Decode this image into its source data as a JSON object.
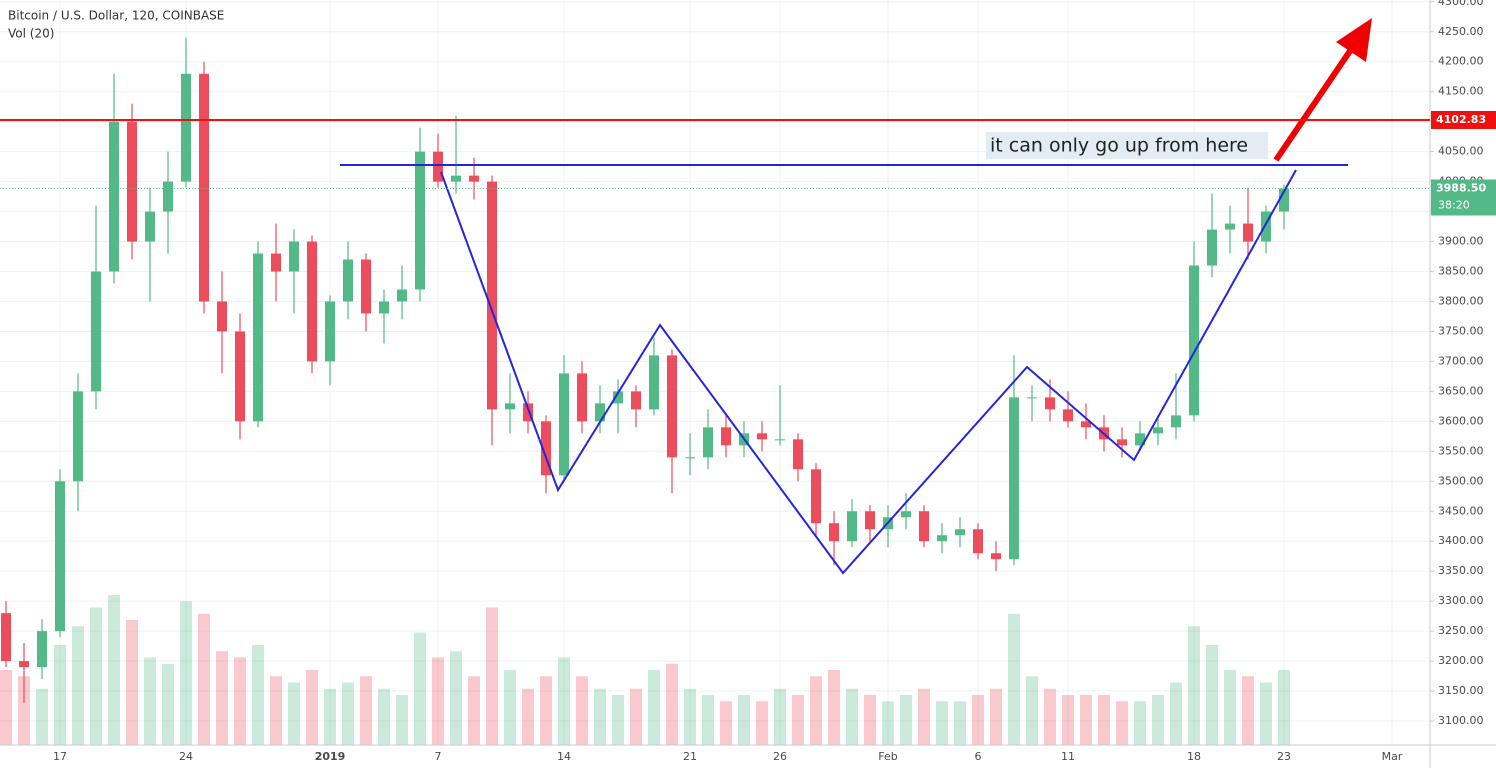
{
  "chart_data": {
    "type": "candlestick",
    "title": "Bitcoin / U.S. Dollar, 120, COINBASE",
    "indicator": "Vol (20)",
    "categories": [
      null,
      null,
      null,
      "17",
      null,
      null,
      null,
      null,
      null,
      null,
      "24",
      null,
      null,
      null,
      null,
      null,
      null,
      null,
      "2019",
      null,
      null,
      null,
      null,
      null,
      "7",
      null,
      null,
      null,
      null,
      null,
      null,
      "14",
      null,
      null,
      null,
      null,
      null,
      null,
      "21",
      null,
      null,
      null,
      null,
      "26",
      null,
      null,
      null,
      null,
      null,
      "Feb",
      null,
      null,
      null,
      null,
      "6",
      null,
      null,
      null,
      null,
      "11",
      null,
      null,
      null,
      null,
      null,
      null,
      "18",
      null,
      null,
      null,
      null,
      "23",
      null,
      null,
      null,
      null,
      null,
      "Mar",
      null,
      null
    ],
    "open": [
      3280,
      3200,
      3190,
      3250,
      3500,
      3650,
      3850,
      4100,
      3900,
      3950,
      4000,
      4180,
      3800,
      3750,
      3600,
      3880,
      3850,
      3900,
      3700,
      3800,
      3870,
      3780,
      3800,
      3820,
      4050,
      4000,
      4010,
      4000,
      3620,
      3630,
      3600,
      3510,
      3680,
      3600,
      3630,
      3650,
      3620,
      3710,
      3540,
      3540,
      3590,
      3560,
      3580,
      3570,
      3570,
      3520,
      3430,
      3400,
      3450,
      3420,
      3440,
      3450,
      3400,
      3410,
      3420,
      3380,
      3370,
      3640,
      3640,
      3620,
      3600,
      3590,
      3570,
      3560,
      3580,
      3590,
      3610,
      3860,
      3920,
      3930,
      3900,
      3950,
      null,
      null,
      null,
      null,
      null,
      null,
      null,
      null
    ],
    "high": [
      3300,
      3230,
      3270,
      3520,
      3680,
      3960,
      4180,
      4130,
      3990,
      4050,
      4240,
      4200,
      3850,
      3780,
      3900,
      3930,
      3920,
      3910,
      3810,
      3900,
      3880,
      3820,
      3860,
      4090,
      4080,
      4110,
      4040,
      4010,
      3680,
      3650,
      3610,
      3710,
      3700,
      3660,
      3670,
      3660,
      3740,
      3720,
      3580,
      3620,
      3610,
      3600,
      3600,
      3660,
      3580,
      3530,
      3450,
      3470,
      3460,
      3460,
      3480,
      3460,
      3430,
      3440,
      3430,
      3400,
      3710,
      3660,
      3670,
      3650,
      3630,
      3610,
      3590,
      3600,
      3610,
      3680,
      3900,
      3980,
      3960,
      3990,
      3960,
      3995,
      null,
      null,
      null,
      null,
      null,
      null,
      null,
      null
    ],
    "low": [
      3190,
      3130,
      3170,
      3240,
      3450,
      3620,
      3830,
      3870,
      3800,
      3880,
      3990,
      3780,
      3680,
      3570,
      3590,
      3800,
      3780,
      3680,
      3660,
      3770,
      3750,
      3730,
      3770,
      3800,
      3990,
      3980,
      3970,
      3560,
      3580,
      3580,
      3480,
      3500,
      3580,
      3580,
      3580,
      3590,
      3610,
      3480,
      3510,
      3520,
      3540,
      3540,
      3550,
      3560,
      3500,
      3410,
      3360,
      3390,
      3400,
      3390,
      3420,
      3390,
      3380,
      3390,
      3370,
      3350,
      3360,
      3600,
      3600,
      3590,
      3570,
      3550,
      3540,
      3550,
      3560,
      3570,
      3600,
      3840,
      3880,
      3870,
      3880,
      3920,
      null,
      null,
      null,
      null,
      null,
      null,
      null,
      null
    ],
    "close": [
      3200,
      3190,
      3250,
      3500,
      3650,
      3850,
      4100,
      3900,
      3950,
      4000,
      4180,
      3800,
      3750,
      3600,
      3880,
      3850,
      3900,
      3700,
      3800,
      3870,
      3780,
      3800,
      3820,
      4050,
      4000,
      4010,
      4000,
      3620,
      3630,
      3600,
      3510,
      3680,
      3600,
      3630,
      3650,
      3620,
      3710,
      3540,
      3540,
      3590,
      3560,
      3580,
      3570,
      3570,
      3520,
      3430,
      3400,
      3450,
      3420,
      3440,
      3450,
      3400,
      3410,
      3420,
      3380,
      3370,
      3640,
      3640,
      3620,
      3600,
      3590,
      3570,
      3560,
      3580,
      3590,
      3610,
      3860,
      3920,
      3930,
      3900,
      3950,
      3988.5,
      null,
      null,
      null,
      null,
      null,
      null,
      null,
      null
    ],
    "volume": [
      60,
      55,
      45,
      80,
      95,
      110,
      120,
      100,
      70,
      65,
      115,
      105,
      75,
      70,
      80,
      55,
      50,
      60,
      45,
      50,
      55,
      45,
      40,
      90,
      70,
      75,
      55,
      110,
      60,
      45,
      55,
      70,
      55,
      45,
      40,
      45,
      60,
      65,
      45,
      40,
      35,
      40,
      35,
      45,
      40,
      55,
      60,
      45,
      40,
      35,
      40,
      45,
      35,
      35,
      40,
      45,
      105,
      55,
      45,
      40,
      40,
      40,
      35,
      35,
      40,
      50,
      95,
      80,
      60,
      55,
      50,
      60,
      null,
      null,
      null,
      null,
      null,
      null,
      null,
      null
    ],
    "colors": {
      "up": "#53b987",
      "down": "#eb4d5c"
    },
    "ylim": [
      3060,
      4303
    ],
    "yticks": [
      {
        "value": 3100,
        "label": "3100.00"
      },
      {
        "value": 3150,
        "label": "3150.00"
      },
      {
        "value": 3200,
        "label": "3200.00"
      },
      {
        "value": 3250,
        "label": "3250.00"
      },
      {
        "value": 3300,
        "label": "3300.00"
      },
      {
        "value": 3350,
        "label": "3350.00"
      },
      {
        "value": 3400,
        "label": "3400.00"
      },
      {
        "value": 3450,
        "label": "3450.00"
      },
      {
        "value": 3500,
        "label": "3500.00"
      },
      {
        "value": 3550,
        "label": "3550.00"
      },
      {
        "value": 3600,
        "label": "3600.00"
      },
      {
        "value": 3650,
        "label": "3650.00"
      },
      {
        "value": 3700,
        "label": "3700.00"
      },
      {
        "value": 3750,
        "label": "3750.00"
      },
      {
        "value": 3800,
        "label": "3800.00"
      },
      {
        "value": 3850,
        "label": "3850.00"
      },
      {
        "value": 3900,
        "label": "3900.00"
      },
      {
        "value": 3950,
        "label": "3950.00"
      },
      {
        "value": 4000,
        "label": "4000.00"
      },
      {
        "value": 4050,
        "label": "4050.00"
      },
      {
        "value": 4100,
        "label": "4100.00"
      },
      {
        "value": 4150,
        "label": "4150.00"
      },
      {
        "value": 4200,
        "label": "4200.00"
      },
      {
        "value": 4250,
        "label": "4250.00"
      },
      {
        "value": 4300,
        "label": "4300.00"
      }
    ],
    "grid": true,
    "resistance": 4102.83,
    "last_price": {
      "value": 3988.5,
      "label": "3988.50"
    },
    "countdown": "38:20",
    "annotation": "it can only go up from here"
  }
}
